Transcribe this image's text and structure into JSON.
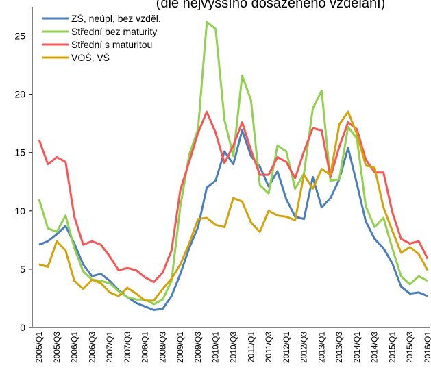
{
  "chart_data": {
    "type": "line",
    "title": "(dle nejvyššího dosaženého vzdělání)",
    "categories": [
      "2005/Q1",
      null,
      "2005/Q3",
      null,
      "2006/Q1",
      null,
      "2006/Q3",
      null,
      "2007/Q1",
      null,
      "2007/Q3",
      null,
      "2008/Q1",
      null,
      "2008/Q3",
      null,
      "2009/Q1",
      null,
      "2009/Q3",
      null,
      "2010/Q1",
      null,
      "2010/Q3",
      null,
      "2011/Q1",
      null,
      "2011/Q3",
      null,
      "2012/Q1",
      null,
      "2012/Q3",
      null,
      "2013/Q1",
      null,
      "2013/Q3",
      null,
      "2014/Q1",
      null,
      "2014/Q3",
      null,
      "2015/Q1",
      null,
      "2015/Q3",
      null,
      "2016/Q1"
    ],
    "series": [
      {
        "name": "ZŠ, neúpl, bez vzděl.",
        "color": "#4a7ebb",
        "values": [
          7.1,
          7.4,
          8.0,
          8.7,
          7.2,
          5.4,
          4.4,
          4.6,
          4.0,
          3.2,
          2.6,
          2.1,
          1.8,
          1.5,
          1.6,
          2.7,
          4.6,
          6.8,
          8.6,
          12.0,
          12.6,
          15.1,
          14.0,
          16.9,
          14.7,
          13.8,
          12.1,
          13.4,
          11.0,
          9.5,
          9.3,
          12.9,
          10.3,
          11.1,
          12.7,
          15.4,
          12.3,
          9.1,
          7.6,
          6.8,
          5.5,
          3.5,
          2.9,
          3.0,
          2.7
        ]
      },
      {
        "name": "Střední bez maturity",
        "color": "#92d050",
        "values": [
          11.0,
          8.5,
          8.2,
          9.6,
          6.8,
          4.8,
          4.1,
          4.0,
          3.8,
          3.1,
          2.6,
          2.4,
          2.4,
          2.0,
          2.4,
          4.0,
          10.4,
          14.8,
          17.0,
          26.2,
          25.6,
          17.8,
          14.7,
          21.6,
          19.5,
          12.2,
          11.5,
          15.6,
          15.1,
          11.9,
          13.2,
          18.8,
          20.3,
          12.6,
          12.7,
          17.2,
          16.2,
          10.4,
          8.6,
          9.4,
          6.8,
          4.4,
          3.7,
          4.4,
          4.0
        ]
      },
      {
        "name": "Střední s maturitou",
        "color": "#f85555",
        "values": [
          16.1,
          14.0,
          14.6,
          14.2,
          9.5,
          7.1,
          7.4,
          7.1,
          6.1,
          4.9,
          5.1,
          4.9,
          4.3,
          3.9,
          4.7,
          6.6,
          11.8,
          14.2,
          16.7,
          18.5,
          16.7,
          14.1,
          15.6,
          17.6,
          15.2,
          13.1,
          13.1,
          14.6,
          14.2,
          12.8,
          15.1,
          17.1,
          16.9,
          12.9,
          15.5,
          17.6,
          17.0,
          14.4,
          13.3,
          13.3,
          9.9,
          7.6,
          7.2,
          7.4,
          5.9
        ]
      },
      {
        "name": "VOŠ, VŠ",
        "color": "#d4a20a",
        "values": [
          5.4,
          5.2,
          7.4,
          6.6,
          4.0,
          3.3,
          4.1,
          3.8,
          3.0,
          2.7,
          3.4,
          2.9,
          2.3,
          2.3,
          3.3,
          4.2,
          5.4,
          7.2,
          9.3,
          9.4,
          8.8,
          8.6,
          11.1,
          10.8,
          9.0,
          8.2,
          10.0,
          9.6,
          9.5,
          9.2,
          13.1,
          11.9,
          13.6,
          13.1,
          17.4,
          18.5,
          16.6,
          13.9,
          13.7,
          10.3,
          8.3,
          6.4,
          6.9,
          6.3,
          4.9
        ]
      }
    ],
    "ylim": [
      0,
      27.5
    ],
    "yticks": [
      0,
      5,
      10,
      15,
      20,
      25
    ],
    "grid": false,
    "legend": "top-left"
  }
}
